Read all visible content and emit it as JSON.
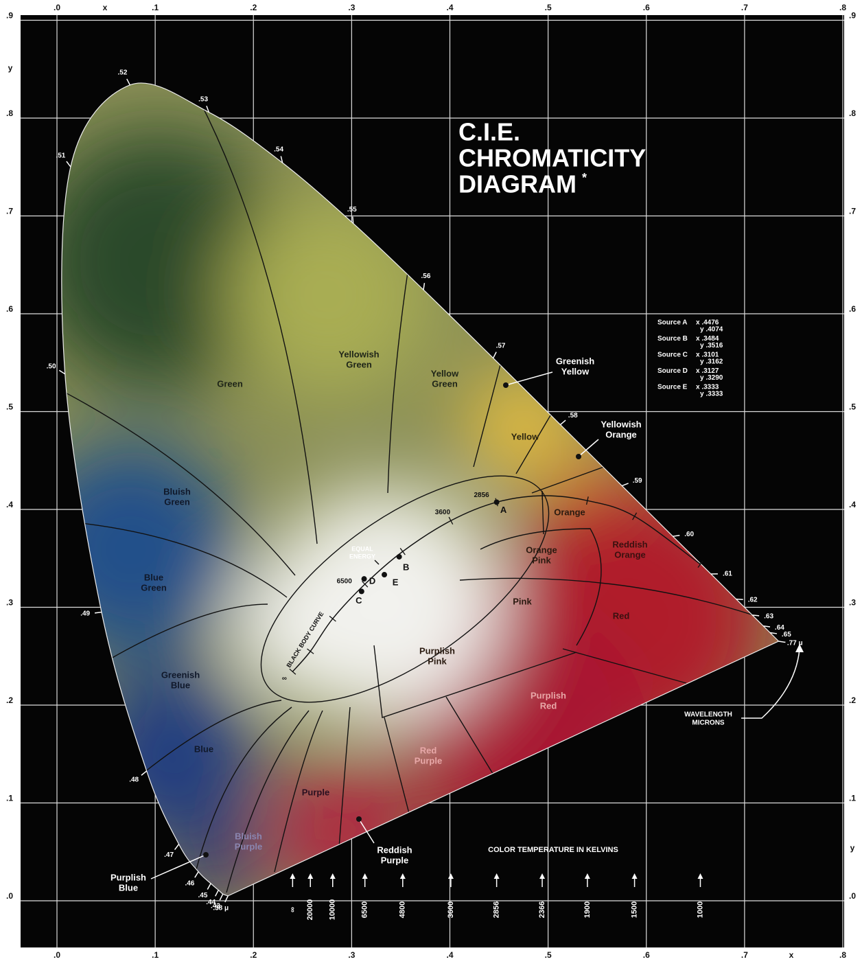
{
  "chart_data": {
    "type": "chromaticity",
    "title": [
      "C.I.E.",
      "CHROMATICITY",
      "DIAGRAM"
    ],
    "title_note": "*",
    "x_label": "x",
    "y_label": "y",
    "xlim": [
      0,
      0.8
    ],
    "ylim": [
      0,
      0.9
    ],
    "xticks": [
      {
        "value": 0,
        "label": ".0"
      },
      {
        "value": 0.1,
        "label": ".1"
      },
      {
        "value": 0.2,
        "label": ".2"
      },
      {
        "value": 0.3,
        "label": ".3"
      },
      {
        "value": 0.4,
        "label": ".4"
      },
      {
        "value": 0.5,
        "label": ".5"
      },
      {
        "value": 0.6,
        "label": ".6"
      },
      {
        "value": 0.7,
        "label": ".7"
      },
      {
        "value": 0.8,
        "label": ".8"
      }
    ],
    "yticks": [
      {
        "value": 0,
        "label": ".0"
      },
      {
        "value": 0.1,
        "label": ".1"
      },
      {
        "value": 0.2,
        "label": ".2"
      },
      {
        "value": 0.3,
        "label": ".3"
      },
      {
        "value": 0.4,
        "label": ".4"
      },
      {
        "value": 0.5,
        "label": ".5"
      },
      {
        "value": 0.6,
        "label": ".6"
      },
      {
        "value": 0.7,
        "label": ".7"
      },
      {
        "value": 0.8,
        "label": ".8"
      },
      {
        "value": 0.9,
        "label": ".9"
      }
    ],
    "grid": true,
    "spectral_locus": {
      "labels": [
        ".38 μ",
        ".43",
        ".44",
        ".45",
        ".46",
        ".47",
        ".48",
        ".49",
        ".50",
        ".51",
        ".52",
        ".53",
        ".54",
        ".55",
        ".56",
        ".57",
        ".58",
        ".59",
        ".60",
        ".61",
        ".62",
        ".63",
        ".64",
        ".65",
        ".77 μ"
      ],
      "x": [
        0.1741,
        0.1689,
        0.1644,
        0.1566,
        0.144,
        0.1241,
        0.0913,
        0.0454,
        0.0082,
        0.0139,
        0.0743,
        0.1547,
        0.2296,
        0.3016,
        0.3731,
        0.4441,
        0.5125,
        0.5752,
        0.627,
        0.6658,
        0.6915,
        0.7079,
        0.719,
        0.726,
        0.7347
      ],
      "y": [
        0.005,
        0.0069,
        0.0109,
        0.0177,
        0.0297,
        0.0578,
        0.1327,
        0.295,
        0.5384,
        0.7502,
        0.8338,
        0.8059,
        0.7543,
        0.6923,
        0.6245,
        0.5547,
        0.4866,
        0.4242,
        0.3725,
        0.334,
        0.3083,
        0.292,
        0.2809,
        0.274,
        0.2653
      ]
    },
    "black_body": {
      "label": "BLACK BODY CURVE",
      "scale_title": "COLOR TEMPERATURE IN KELVINS",
      "temperatures": [
        "∞",
        "20000",
        "10000",
        "6500",
        "4800",
        "3600",
        "2856",
        "2366",
        "1900",
        "1500",
        "1000"
      ],
      "x": [
        0.2399,
        0.258,
        0.2807,
        0.3135,
        0.352,
        0.401,
        0.4476,
        0.494,
        0.54,
        0.588,
        0.655
      ],
      "y": [
        0.2342,
        0.255,
        0.2883,
        0.3236,
        0.357,
        0.3885,
        0.4074,
        0.414,
        0.409,
        0.393,
        0.344
      ]
    },
    "sources": [
      {
        "name": "Source A",
        "label": "A",
        "x": 0.4476,
        "y": 0.4074,
        "x_text": "x .4476",
        "y_text": "y .4074"
      },
      {
        "name": "Source B",
        "label": "B",
        "x": 0.3484,
        "y": 0.3516,
        "x_text": "x .3484",
        "y_text": "y .3516"
      },
      {
        "name": "Source C",
        "label": "C",
        "x": 0.3101,
        "y": 0.3162,
        "x_text": "x .3101",
        "y_text": "y .3162"
      },
      {
        "name": "Source D",
        "label": "D",
        "x": 0.3127,
        "y": 0.329,
        "x_text": "x .3127",
        "y_text": "y .3290"
      },
      {
        "name": "Source E",
        "label": "E",
        "x": 0.3333,
        "y": 0.3333,
        "x_text": "x .3333",
        "y_text": "y .3333"
      }
    ],
    "equal_energy": [
      "EQUAL",
      "ENERGY"
    ],
    "wavelength_note": [
      "WAVELENGTH",
      "MICRONS"
    ],
    "regions": [
      [
        "Green"
      ],
      [
        "Yellowish",
        "Green"
      ],
      [
        "Yellow",
        "Green"
      ],
      [
        "Greenish",
        "Yellow"
      ],
      [
        "Yellow"
      ],
      [
        "Yellowish",
        "Orange"
      ],
      [
        "Orange"
      ],
      [
        "Reddish",
        "Orange"
      ],
      [
        "Orange",
        "Pink"
      ],
      [
        "Pink"
      ],
      [
        "Red"
      ],
      [
        "Purplish",
        "Pink"
      ],
      [
        "Purplish",
        "Red"
      ],
      [
        "Red",
        "Purple"
      ],
      [
        "Purple"
      ],
      [
        "Reddish",
        "Purple"
      ],
      [
        "Bluish",
        "Purple"
      ],
      [
        "Purplish",
        "Blue"
      ],
      [
        "Blue"
      ],
      [
        "Greenish",
        "Blue"
      ],
      [
        "Blue",
        "Green"
      ],
      [
        "Bluish",
        "Green"
      ]
    ]
  }
}
